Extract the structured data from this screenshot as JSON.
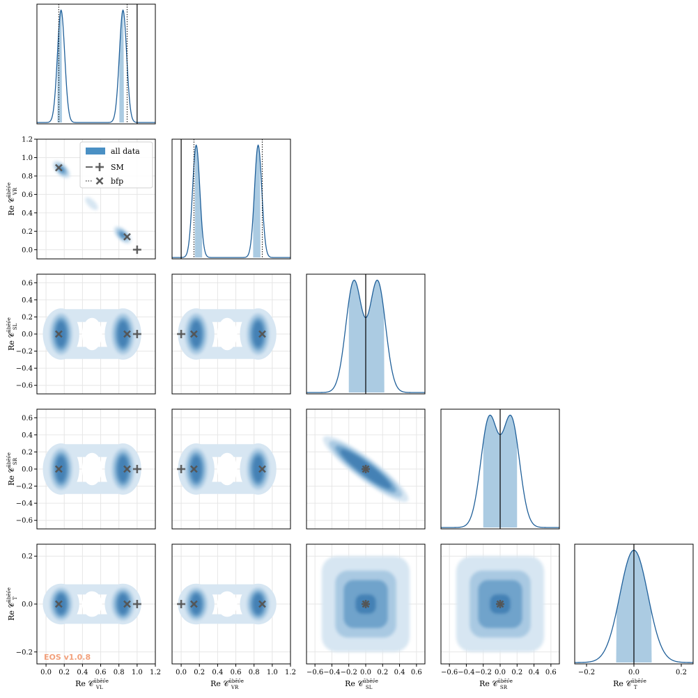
{
  "chart_data": {
    "type": "corner",
    "parameters": [
      {
        "key": "VL",
        "label": "Re C^{ūbēν̄e}_{VL}",
        "label_base": "Re 𝒞",
        "label_sup": "ūbēν̄e",
        "label_sub": "VL",
        "range": [
          -0.1,
          1.2
        ],
        "ticks": [
          0.0,
          0.2,
          0.4,
          0.6,
          0.8,
          1.0,
          1.2
        ],
        "tick_labels": [
          "0.0",
          "0.2",
          "0.4",
          "0.6",
          "0.8",
          "1.0",
          "1.2"
        ],
        "sm": 1.0,
        "bfp": 0.14,
        "alt_bfp": 0.89
      },
      {
        "key": "VR",
        "label": "Re C^{ūbēν̄e}_{VR}",
        "label_base": "Re 𝒞",
        "label_sup": "ūbēν̄e",
        "label_sub": "VR",
        "range": [
          -0.1,
          1.2
        ],
        "ticks": [
          0.0,
          0.2,
          0.4,
          0.6,
          0.8,
          1.0,
          1.2
        ],
        "tick_labels": [
          "0.0",
          "0.2",
          "0.4",
          "0.6",
          "0.8",
          "1.0",
          "1.2"
        ],
        "sm": 0.0,
        "bfp": 0.89,
        "alt_bfp": 0.14
      },
      {
        "key": "SL",
        "label": "Re C^{ūbēν̄e}_{SL}",
        "label_base": "Re 𝒞",
        "label_sup": "ūbēν̄e",
        "label_sub": "SL",
        "range": [
          -0.7,
          0.7
        ],
        "ticks": [
          -0.6,
          -0.4,
          -0.2,
          0.0,
          0.2,
          0.4,
          0.6
        ],
        "tick_labels": [
          "−0.6",
          "−0.4",
          "−0.2",
          "0.0",
          "0.2",
          "0.4",
          "0.6"
        ],
        "sm": 0.0,
        "bfp": 0.0
      },
      {
        "key": "SR",
        "label": "Re C^{ūbēν̄e}_{SR}",
        "label_base": "Re 𝒞",
        "label_sup": "ūbēν̄e",
        "label_sub": "SR",
        "range": [
          -0.7,
          0.7
        ],
        "ticks": [
          -0.6,
          -0.4,
          -0.2,
          0.0,
          0.2,
          0.4,
          0.6
        ],
        "tick_labels": [
          "−0.6",
          "−0.4",
          "−0.2",
          "0.0",
          "0.2",
          "0.4",
          "0.6"
        ],
        "sm": 0.0,
        "bfp": 0.0
      },
      {
        "key": "T",
        "label": "Re C^{ūbēν̄e}_{T}",
        "label_base": "Re 𝒞",
        "label_sup": "ūbēν̄e",
        "label_sub": "T",
        "range": [
          -0.25,
          0.25
        ],
        "ticks": [
          -0.2,
          0.0,
          0.2
        ],
        "tick_labels": [
          "−0.2",
          "0.0",
          "0.2"
        ],
        "sm": 0.0,
        "bfp": 0.0
      }
    ],
    "marginals": [
      {
        "param": "VL",
        "peaks": [
          {
            "mu": 0.165,
            "sigma": 0.04
          },
          {
            "mu": 0.845,
            "sigma": 0.04
          }
        ],
        "hpd": [
          [
            0.125,
            0.175
          ],
          [
            0.805,
            0.855
          ]
        ]
      },
      {
        "param": "VR",
        "peaks": [
          {
            "mu": 0.165,
            "sigma": 0.04
          },
          {
            "mu": 0.845,
            "sigma": 0.04
          }
        ],
        "hpd": [
          [
            0.15,
            0.23
          ],
          [
            0.79,
            0.87
          ]
        ]
      },
      {
        "param": "SL",
        "peaks": [
          {
            "mu": -0.14,
            "sigma": 0.095
          },
          {
            "mu": 0.14,
            "sigma": 0.095
          }
        ],
        "hpd": [
          [
            -0.2,
            0.22
          ]
        ]
      },
      {
        "param": "SR",
        "peaks": [
          {
            "mu": -0.13,
            "sigma": 0.1
          },
          {
            "mu": 0.13,
            "sigma": 0.1
          }
        ],
        "hpd": [
          [
            -0.2,
            0.2
          ]
        ]
      },
      {
        "param": "T",
        "peaks": [
          {
            "mu": -0.02,
            "sigma": 0.055
          },
          {
            "mu": 0.02,
            "sigma": 0.055
          }
        ],
        "hpd": [
          [
            -0.075,
            0.075
          ]
        ]
      }
    ],
    "legend": {
      "position": "upper-right",
      "entries": [
        {
          "kind": "patch",
          "label": "all data"
        },
        {
          "kind": "sm",
          "label": "SM"
        },
        {
          "kind": "bfp",
          "label": "bfp"
        }
      ]
    },
    "grid": true,
    "watermark": "EOS v1.0.8",
    "colors": {
      "main": "#1f5f99",
      "fill": "#a6c8e0",
      "legend_patch": "#4a90c4",
      "marker": "#555555"
    }
  }
}
